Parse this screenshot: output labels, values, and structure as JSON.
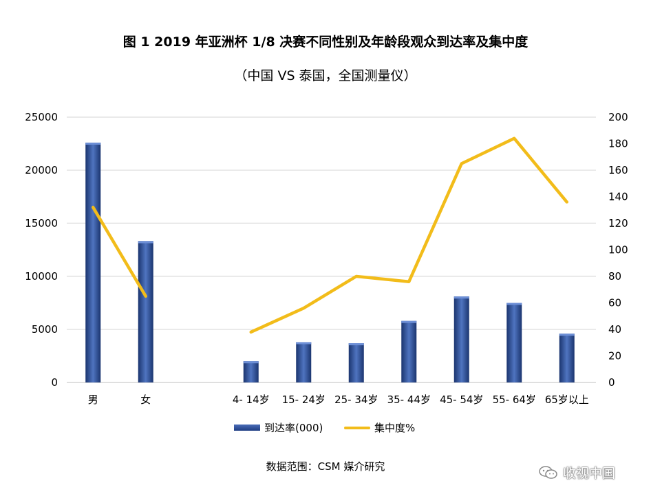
{
  "title": "图 1 2019 年亚洲杯 1/8 决赛不同性别及年龄段观众到达率及集中度",
  "subtitle": "（中国 VS 泰国，全国测量仪）",
  "source_note": "数据范围：CSM 媒介研究",
  "watermark": "收视中国",
  "watermark_icon": "wechat-icon",
  "colors": {
    "bar": "#2b4c99",
    "line": "#f2bc1a",
    "grid": "#d4d4d4"
  },
  "chart_data": {
    "type": "bar",
    "categories": [
      "男",
      "女",
      "",
      "4- 14岁",
      "15- 24岁",
      "25- 34岁",
      "35- 44岁",
      "45- 54岁",
      "55- 64岁",
      "65岁以上"
    ],
    "series": [
      {
        "name": "到达率(000)",
        "type": "bar",
        "axis": "left",
        "values": [
          22600,
          13300,
          null,
          2000,
          3800,
          3700,
          5800,
          8100,
          7500,
          4600
        ]
      },
      {
        "name": "集中度%",
        "type": "line",
        "axis": "right",
        "values": [
          132,
          65,
          null,
          38,
          56,
          80,
          76,
          165,
          184,
          136
        ]
      }
    ],
    "y_left": {
      "ylim": [
        0,
        25000
      ],
      "ticks": [
        0,
        5000,
        10000,
        15000,
        20000,
        25000
      ]
    },
    "y_right": {
      "ylim": [
        0,
        200
      ],
      "ticks": [
        0,
        20,
        40,
        60,
        80,
        100,
        120,
        140,
        160,
        180,
        200
      ]
    },
    "grid": true,
    "legend_position": "bottom"
  }
}
